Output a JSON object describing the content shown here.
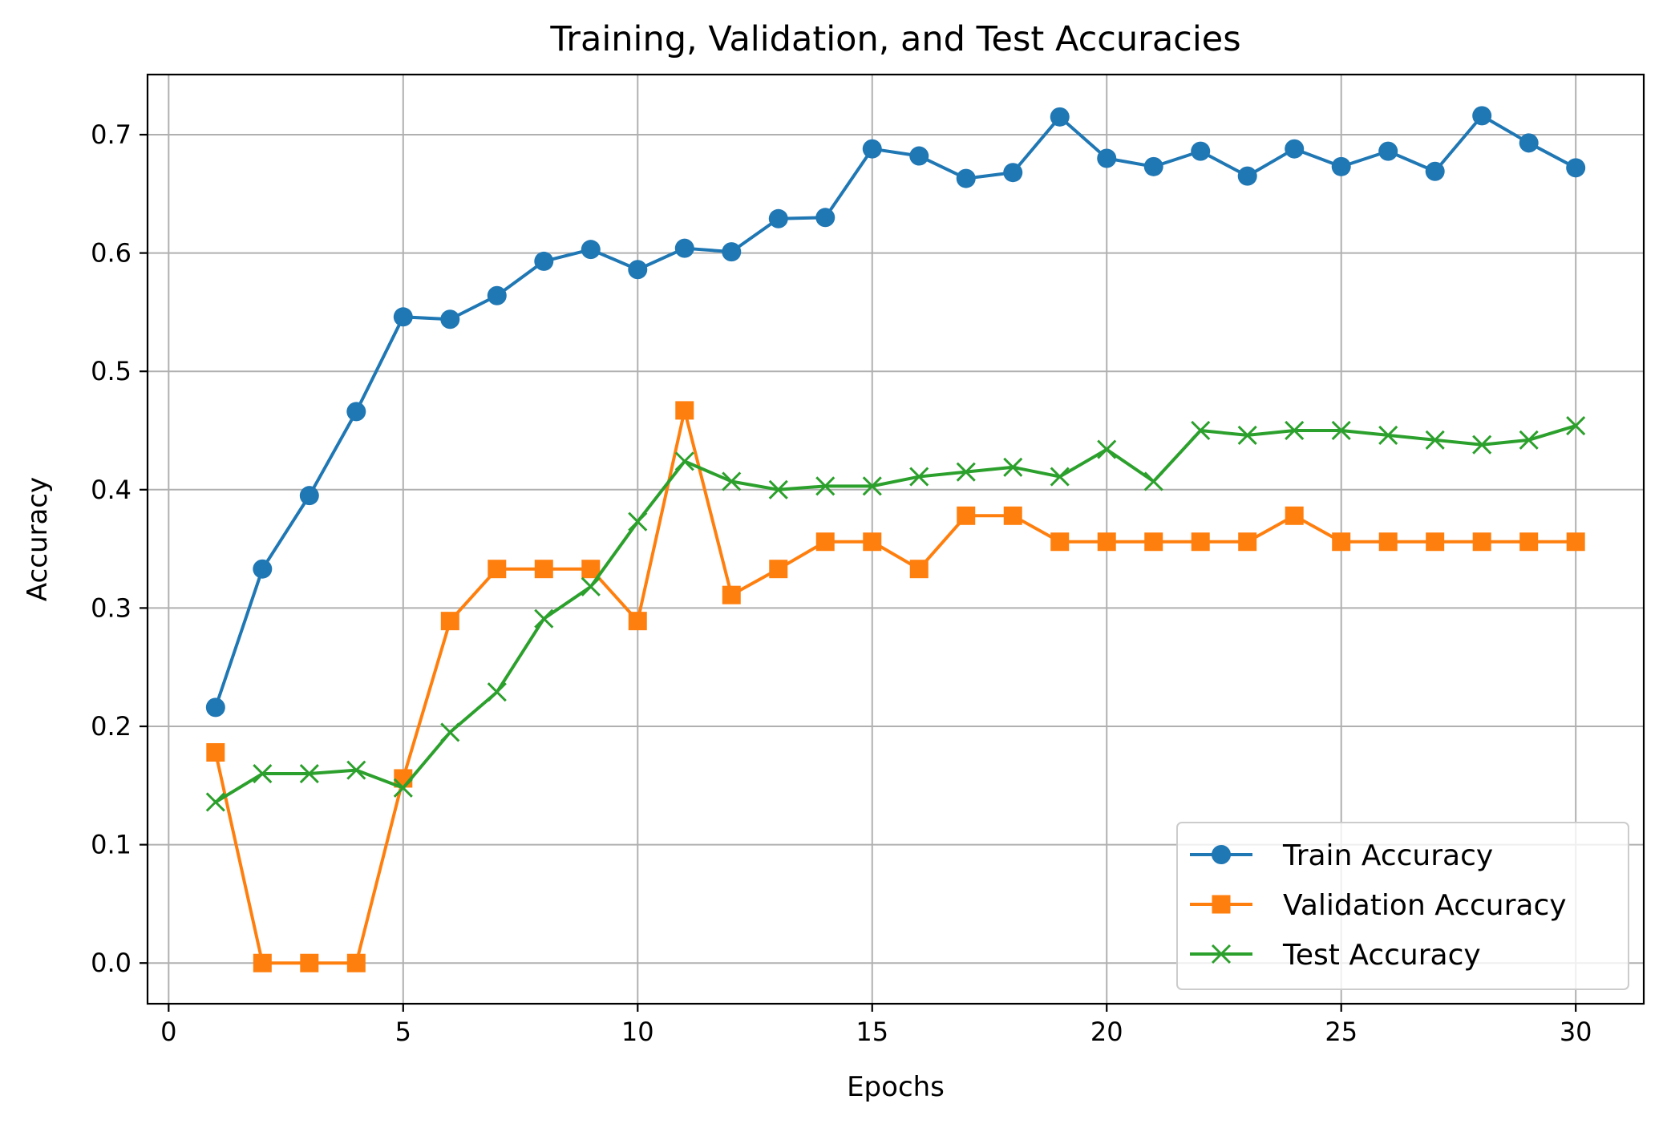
{
  "chart_data": {
    "type": "line",
    "title": "Training, Validation, and Test Accuracies",
    "xlabel": "Epochs",
    "ylabel": "Accuracy",
    "xlim": [
      -0.45,
      31.45
    ],
    "ylim": [
      -0.0344,
      0.7508
    ],
    "xticks": [
      0,
      5,
      10,
      15,
      20,
      25,
      30
    ],
    "yticks": [
      0.0,
      0.1,
      0.2,
      0.3,
      0.4,
      0.5,
      0.6,
      0.7
    ],
    "grid": true,
    "legend_position": "lower-right",
    "x": [
      1,
      2,
      3,
      4,
      5,
      6,
      7,
      8,
      9,
      10,
      11,
      12,
      13,
      14,
      15,
      16,
      17,
      18,
      19,
      20,
      21,
      22,
      23,
      24,
      25,
      26,
      27,
      28,
      29,
      30
    ],
    "series": [
      {
        "name": "Train Accuracy",
        "color": "#1f77b4",
        "marker": "circle",
        "values": [
          0.216,
          0.333,
          0.395,
          0.466,
          0.546,
          0.544,
          0.564,
          0.593,
          0.603,
          0.586,
          0.604,
          0.601,
          0.629,
          0.63,
          0.688,
          0.682,
          0.663,
          0.668,
          0.715,
          0.68,
          0.673,
          0.686,
          0.665,
          0.688,
          0.673,
          0.686,
          0.669,
          0.716,
          0.693,
          0.672
        ]
      },
      {
        "name": "Validation Accuracy",
        "color": "#ff7f0e",
        "marker": "square",
        "values": [
          0.178,
          0.0,
          0.0,
          0.0,
          0.156,
          0.289,
          0.333,
          0.333,
          0.333,
          0.289,
          0.467,
          0.311,
          0.333,
          0.356,
          0.356,
          0.333,
          0.378,
          0.378,
          0.356,
          0.356,
          0.356,
          0.356,
          0.356,
          0.378,
          0.356,
          0.356,
          0.356,
          0.356,
          0.356,
          0.356
        ]
      },
      {
        "name": "Test Accuracy",
        "color": "#2ca02c",
        "marker": "x",
        "values": [
          0.136,
          0.16,
          0.16,
          0.163,
          0.148,
          0.195,
          0.229,
          0.291,
          0.318,
          0.373,
          0.424,
          0.407,
          0.4,
          0.403,
          0.403,
          0.411,
          0.415,
          0.419,
          0.411,
          0.434,
          0.407,
          0.45,
          0.446,
          0.45,
          0.45,
          0.446,
          0.442,
          0.438,
          0.442,
          0.454
        ]
      }
    ]
  }
}
